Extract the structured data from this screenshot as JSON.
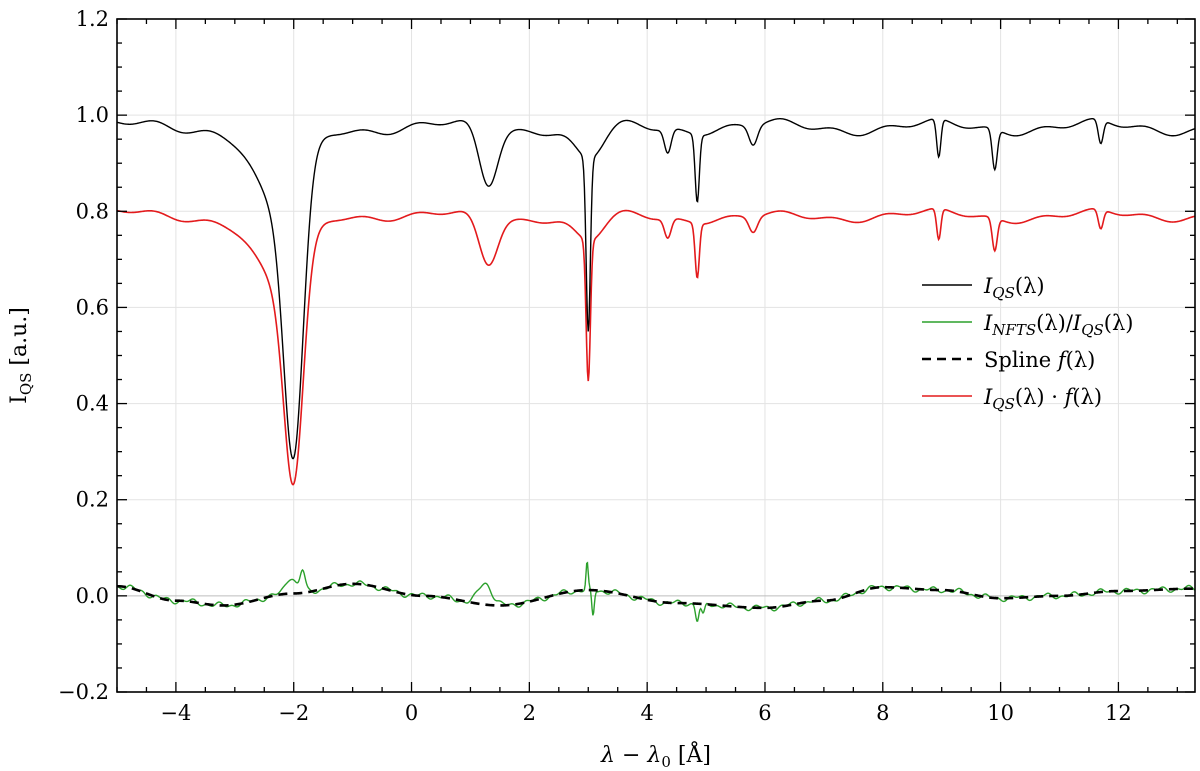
{
  "chart_data": {
    "type": "line",
    "xlabel": "λ − λ₀ [Å]",
    "ylabel": "I",
    "ylabel_sub": "QS",
    "xlim": [
      -5.0,
      13.3
    ],
    "ylim": [
      -0.2,
      1.2
    ],
    "xticks": [
      -4,
      -2,
      0,
      2,
      4,
      6,
      8,
      10,
      12
    ],
    "xtick_labels": [
      "−4",
      "−2",
      "0",
      "2",
      "4",
      "6",
      "8",
      "10",
      "12"
    ],
    "yticks": [
      -0.2,
      0.0,
      0.2,
      0.4,
      0.6,
      0.8,
      1.0,
      1.2
    ],
    "ytick_labels": [
      "−0.2",
      "0.0",
      "0.2",
      "0.4",
      "0.6",
      "0.8",
      "1.0",
      "1.2"
    ],
    "grid": true,
    "legend_position": "right",
    "series": [
      {
        "key": "iqs",
        "color": "#000000",
        "dash": "",
        "width": 1.4,
        "continuum": 0.975,
        "lines": [
          {
            "c": -2.0,
            "d": 0.55,
            "w": 0.23
          },
          {
            "c": -2.25,
            "d": 0.18,
            "w": 0.55
          },
          {
            "c": 1.3,
            "d": 0.12,
            "w": 0.22
          },
          {
            "c": 3.0,
            "d": 0.36,
            "w": 0.05
          },
          {
            "c": 3.0,
            "d": 0.07,
            "w": 0.35
          },
          {
            "c": 4.35,
            "d": 0.05,
            "w": 0.08
          },
          {
            "c": 4.85,
            "d": 0.14,
            "w": 0.05
          },
          {
            "c": 5.8,
            "d": 0.04,
            "w": 0.1
          },
          {
            "c": 8.95,
            "d": 0.08,
            "w": 0.05
          },
          {
            "c": 9.9,
            "d": 0.085,
            "w": 0.06
          },
          {
            "c": 11.7,
            "d": 0.05,
            "w": 0.06
          }
        ],
        "legend_main": "I",
        "legend_sub": "QS",
        "legend_rest": "(λ)"
      },
      {
        "key": "ratio",
        "color": "#2ca02c",
        "dash": "",
        "width": 1.4,
        "legend_main": "I",
        "legend_sub": "NFTS",
        "legend_rest": "(λ)/",
        "legend_main2": "I",
        "legend_sub2": "QS",
        "legend_rest2": "(λ)"
      },
      {
        "key": "spline",
        "color": "#000000",
        "dash": "9,6",
        "width": 2.6,
        "knots_x": [
          -5.0,
          -4.0,
          -3.2,
          -2.0,
          -1.0,
          0.2,
          1.5,
          3.0,
          4.5,
          6.0,
          7.0,
          8.0,
          9.0,
          10.0,
          11.0,
          12.0,
          13.3
        ],
        "knots_y": [
          0.02,
          -0.01,
          -0.02,
          0.005,
          0.025,
          0.0,
          -0.02,
          0.012,
          -0.015,
          -0.025,
          -0.01,
          0.018,
          0.012,
          -0.005,
          0.0,
          0.01,
          0.015
        ],
        "legend_text": "Spline ",
        "legend_italic": "f",
        "legend_rest": "(λ)"
      },
      {
        "key": "product",
        "color": "#e31a1c",
        "dash": "",
        "width": 1.6,
        "scale": 0.79,
        "legend_main": "I",
        "legend_sub": "QS",
        "legend_rest": "(λ) · ",
        "legend_italic": "f",
        "legend_rest2": "(λ)"
      }
    ],
    "ratio_bumps": [
      {
        "c": -2.05,
        "d": 0.035,
        "w": 0.12
      },
      {
        "c": -1.85,
        "d": 0.045,
        "w": 0.06
      },
      {
        "c": 1.25,
        "d": 0.045,
        "w": 0.16
      },
      {
        "c": 2.98,
        "d": 0.055,
        "w": 0.025
      },
      {
        "c": 3.08,
        "d": -0.055,
        "w": 0.03
      },
      {
        "c": 4.85,
        "d": -0.035,
        "w": 0.04
      },
      {
        "c": 4.95,
        "d": -0.025,
        "w": 0.04
      }
    ]
  }
}
